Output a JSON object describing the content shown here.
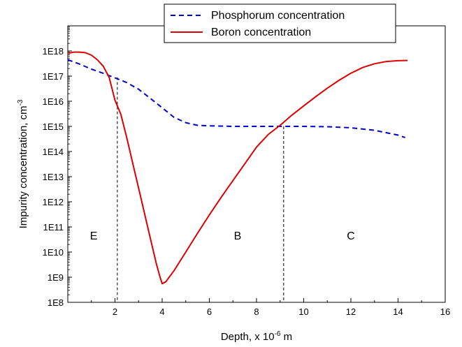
{
  "chart_data": {
    "type": "line",
    "xlabel": "Depth, x 10",
    "xlabel_exponent": "-6",
    "xlabel_unit": " m",
    "ylabel": "Impurity concentration, cm",
    "ylabel_exponent": "-3",
    "xlim": [
      0,
      16
    ],
    "ylim": [
      100000000.0,
      1e+19
    ],
    "yscale": "log",
    "x_ticks": [
      2,
      4,
      6,
      8,
      10,
      12,
      14,
      16
    ],
    "x_tick_labels": [
      "2",
      "4",
      "6",
      "8",
      "10",
      "12",
      "14",
      "16"
    ],
    "y_ticks": [
      100000000.0,
      1000000000.0,
      10000000000.0,
      100000000000.0,
      1000000000000.0,
      10000000000000.0,
      100000000000000.0,
      1000000000000000.0,
      1e+16,
      1e+17,
      1e+18
    ],
    "y_tick_labels": [
      "1E8",
      "1E9",
      "1E10",
      "1E11",
      "1E12",
      "1E13",
      "1E14",
      "1E15",
      "1E16",
      "1E17",
      "1E18"
    ],
    "legend_position": "top-right",
    "series": [
      {
        "name": "Phosphorum concentration",
        "color": "#0000cc",
        "style": "dashed",
        "x": [
          0.0,
          0.5,
          1.0,
          1.5,
          2.0,
          2.5,
          3.0,
          3.5,
          4.0,
          4.5,
          5.0,
          5.5,
          6.0,
          7.0,
          8.0,
          9.0,
          10.0,
          11.0,
          12.0,
          13.0,
          14.0,
          14.3
        ],
        "y": [
          4.5e+17,
          3e+17,
          1.9e+17,
          1.3e+17,
          8.5e+16,
          5.5e+16,
          3e+16,
          1.3e+16,
          5500000000000000.0,
          2300000000000000.0,
          1400000000000000.0,
          1100000000000000.0,
          1050000000000000.0,
          1000000000000000.0,
          1000000000000000.0,
          1000000000000000.0,
          1000000000000000.0,
          970000000000000.0,
          880000000000000.0,
          700000000000000.0,
          450000000000000.0,
          360000000000000.0
        ]
      },
      {
        "name": "Boron concentration",
        "color": "#dd0000",
        "style": "solid",
        "x": [
          0.0,
          0.25,
          0.5,
          0.75,
          1.0,
          1.25,
          1.5,
          1.75,
          2.0,
          2.25,
          2.5,
          2.75,
          3.0,
          3.25,
          3.5,
          3.75,
          3.9,
          4.0,
          4.15,
          4.5,
          5.0,
          5.5,
          6.0,
          6.5,
          7.0,
          7.5,
          8.0,
          8.5,
          9.0,
          9.5,
          10.0,
          10.5,
          11.0,
          11.5,
          12.0,
          12.5,
          13.0,
          13.5,
          14.0,
          14.4
        ],
        "y": [
          8e+17,
          9e+17,
          9e+17,
          8.5e+17,
          6.8e+17,
          4.5e+17,
          2.5e+17,
          9e+16,
          1.1e+16,
          3000000000000000.0,
          350000000000000.0,
          35000000000000.0,
          3500000000000.0,
          350000000000.0,
          35000000000.0,
          3500000000.0,
          1100000000.0,
          550000000.0,
          650000000.0,
          1800000000.0,
          10000000000.0,
          56000000000.0,
          300000000000.0,
          1500000000000.0,
          7000000000000.0,
          32000000000000.0,
          150000000000000.0,
          480000000000000.0,
          1100000000000000.0,
          2800000000000000.0,
          6500000000000000.0,
          1.5e+16,
          3.3e+16,
          6.8e+16,
          1.3e+17,
          2.2e+17,
          3.1e+17,
          3.8e+17,
          4.1e+17,
          4.2e+17
        ]
      }
    ],
    "annotations": [
      {
        "kind": "vline",
        "x": 2.1,
        "y_top": 9e+16
      },
      {
        "kind": "vline",
        "x": 9.15,
        "y_top": 1000000000000000.0
      }
    ],
    "region_labels": [
      {
        "text": "E",
        "x": 1.1,
        "y": 32000000000.0
      },
      {
        "text": "B",
        "x": 7.2,
        "y": 32000000000.0
      },
      {
        "text": "C",
        "x": 12.0,
        "y": 32000000000.0
      }
    ]
  }
}
